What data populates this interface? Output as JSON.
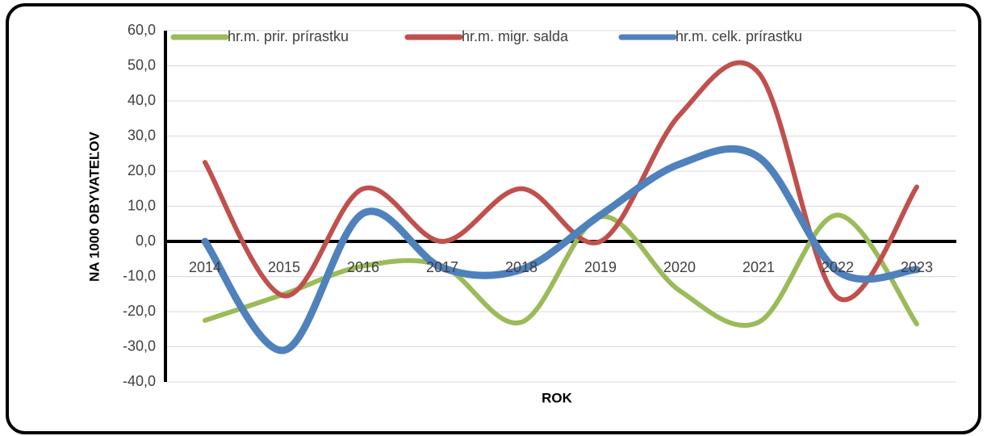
{
  "chart_data": {
    "type": "line",
    "categories": [
      "2014",
      "2015",
      "2016",
      "2017",
      "2018",
      "2019",
      "2020",
      "2021",
      "2022",
      "2023"
    ],
    "series": [
      {
        "name": "hr.m. prir. prírastku",
        "color": "#9bbb59",
        "values": [
          -22.5,
          -15,
          -7,
          -7,
          -23,
          7,
          -14,
          -23,
          7.5,
          -23.5
        ]
      },
      {
        "name": "hr.m. migr. salda",
        "color": "#c0504d",
        "values": [
          22.5,
          -15.5,
          15,
          0,
          15,
          0,
          36,
          48,
          -16,
          15.5
        ]
      },
      {
        "name": "hr.m. celk. prírastku",
        "color": "#4f81bd",
        "values": [
          0,
          -31,
          8,
          -7.5,
          -8,
          7.5,
          22,
          24,
          -8.5,
          -8
        ]
      }
    ],
    "ylim": [
      -40,
      60
    ],
    "yticks": [
      {
        "value": -40,
        "label": "-40,0"
      },
      {
        "value": -30,
        "label": "-30,0"
      },
      {
        "value": -20,
        "label": "-20,0"
      },
      {
        "value": -10,
        "label": "-10,0"
      },
      {
        "value": 0,
        "label": "0,0"
      },
      {
        "value": 10,
        "label": "10,0"
      },
      {
        "value": 20,
        "label": "20,0"
      },
      {
        "value": 30,
        "label": "30,0"
      },
      {
        "value": 40,
        "label": "40,0"
      },
      {
        "value": 50,
        "label": "50,0"
      },
      {
        "value": 60,
        "label": "60,0"
      }
    ],
    "ylabel": "NA 1000 OBYVATEĽOV",
    "xlabel": "ROK",
    "grid": true,
    "legend": "top"
  }
}
